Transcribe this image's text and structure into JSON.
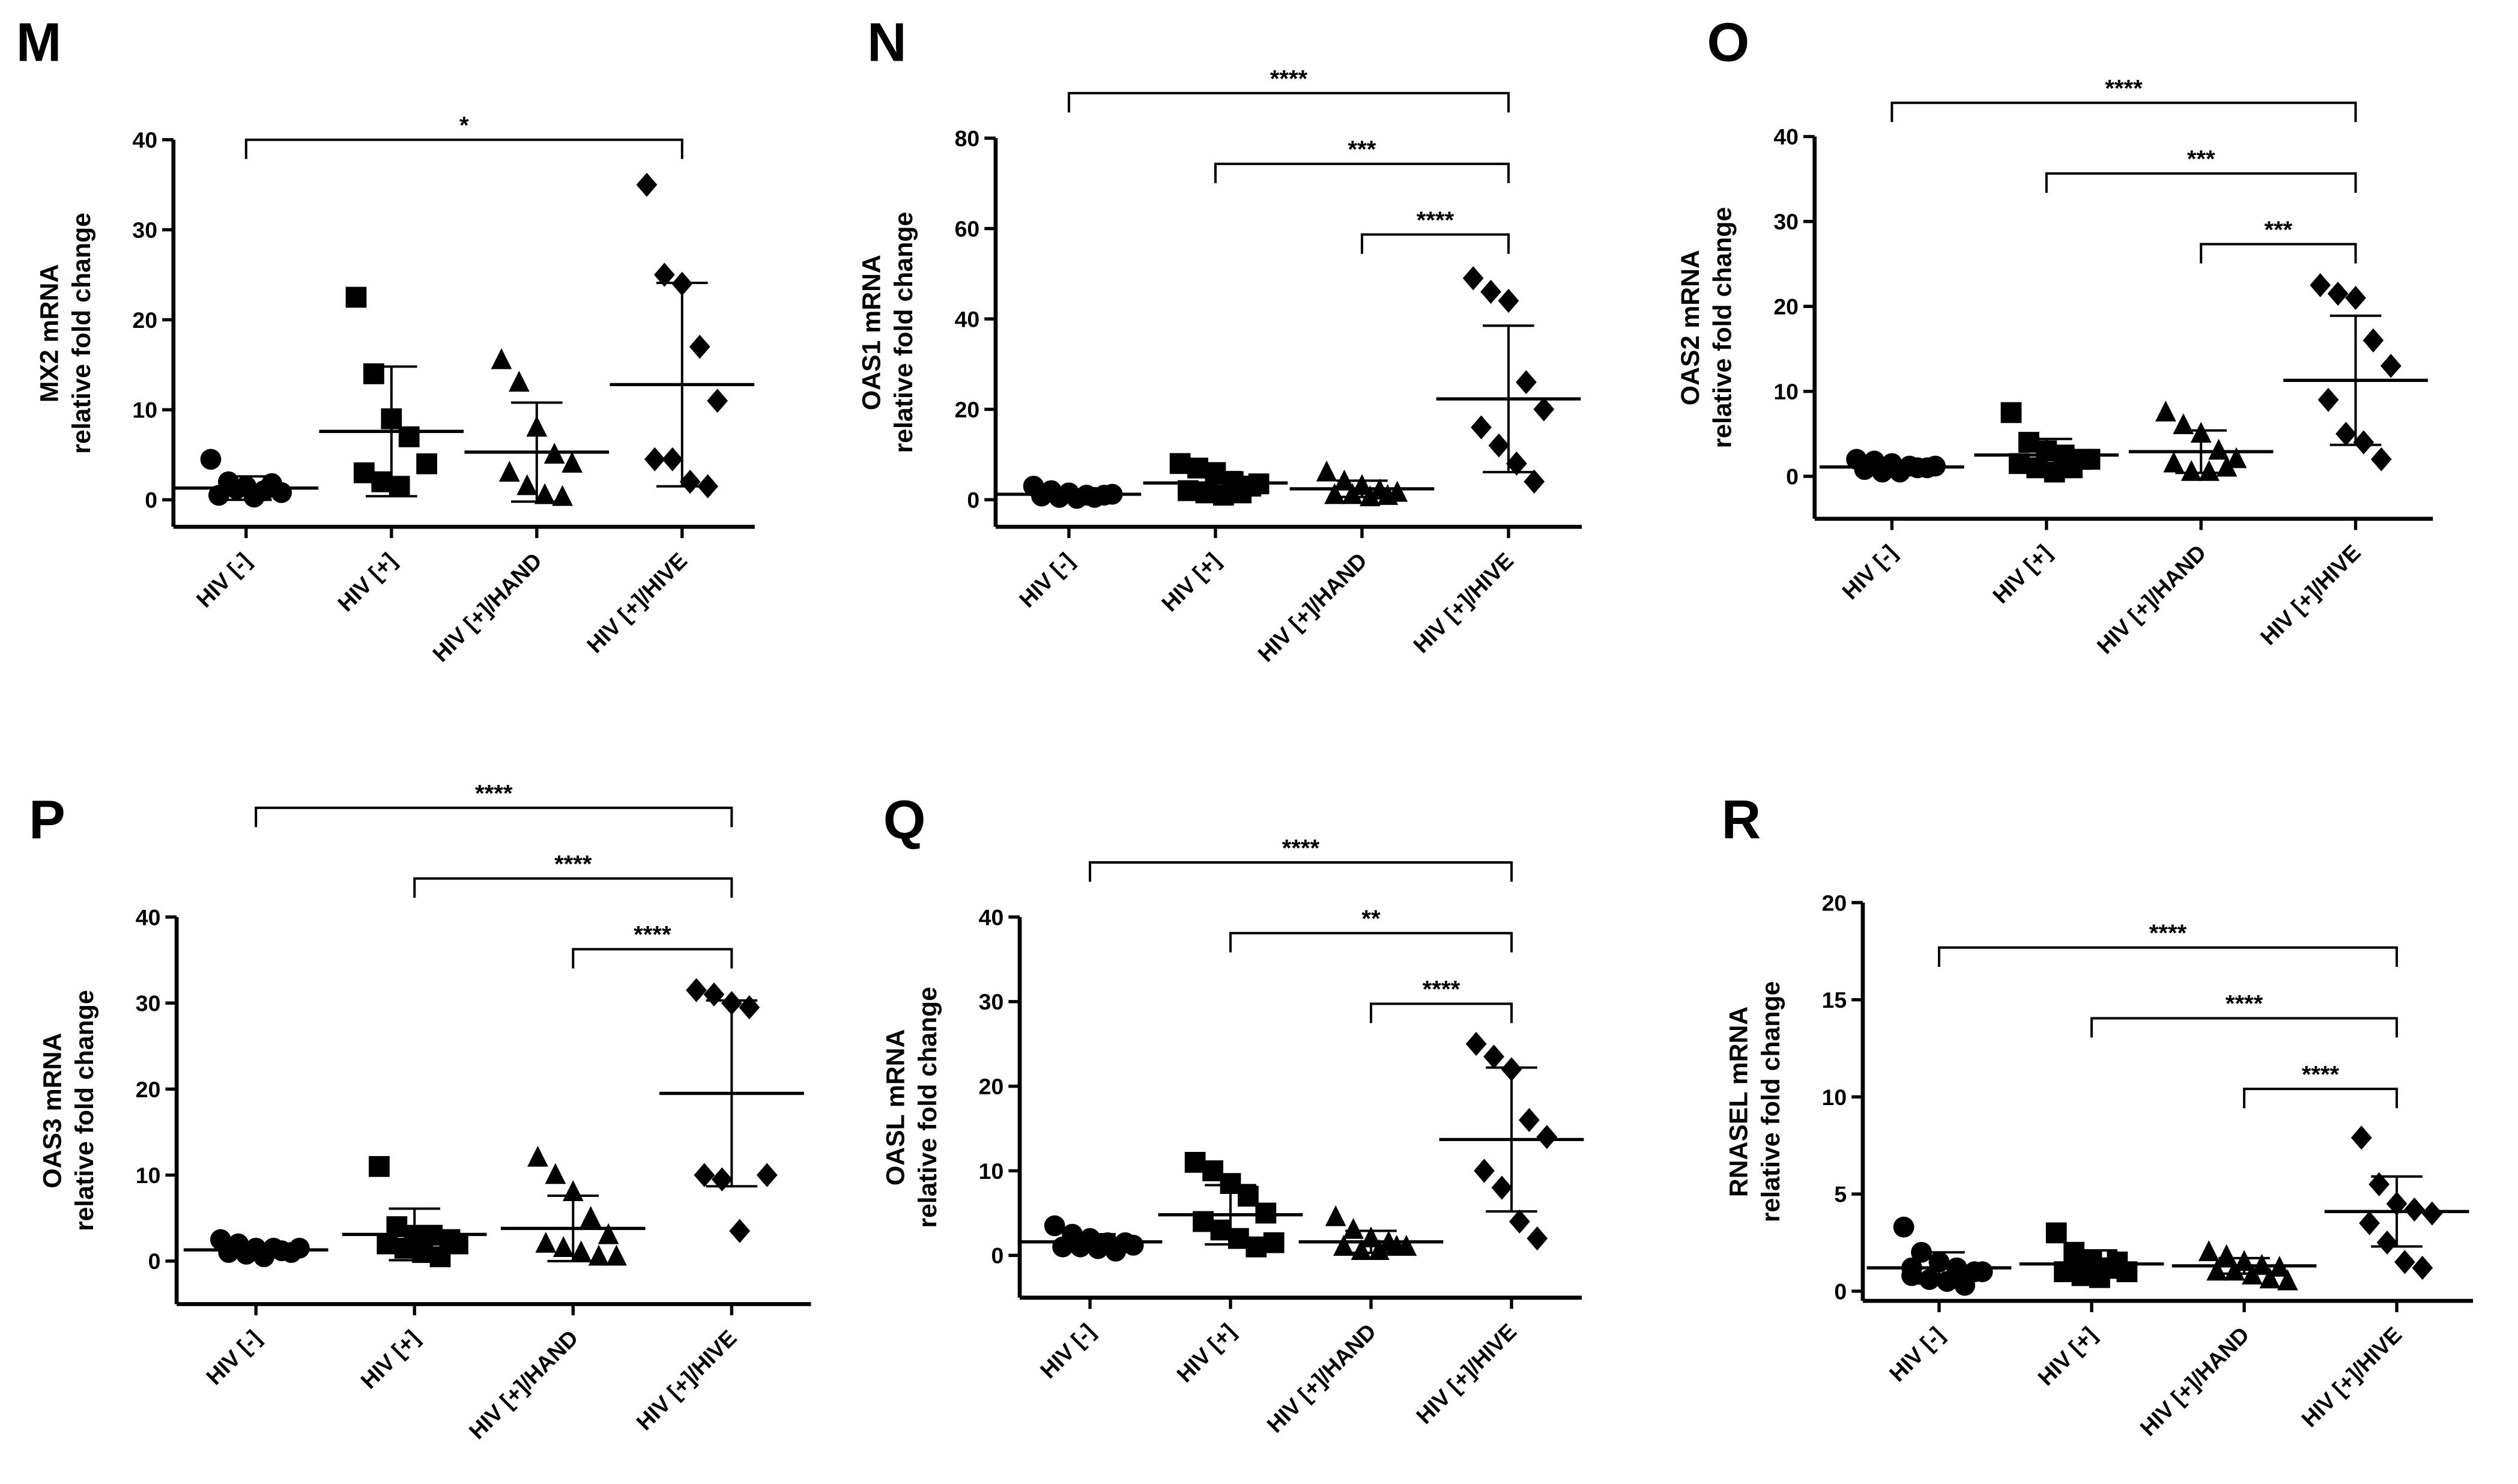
{
  "chart_data": [
    {
      "type": "dotplot",
      "panel": "M",
      "ylabel": [
        "MX2 mRNA",
        "relative fold change"
      ],
      "categories": [
        "HIV [-]",
        "HIV [+]",
        "HIV [+]/HAND",
        "HIV [+]/HIVE"
      ],
      "markers": [
        "circle",
        "square",
        "triangle",
        "diamond"
      ],
      "color": "#000000",
      "ylim": [
        -3,
        40
      ],
      "yticks": [
        0,
        10,
        20,
        30,
        40
      ],
      "groups": [
        {
          "values": [
            4.5,
            2,
            1.5,
            1,
            0.8,
            0.5,
            1.2,
            0.3,
            1.8
          ],
          "mean": 1.3,
          "sd": 1.3
        },
        {
          "values": [
            22.5,
            14,
            9,
            7,
            4,
            3,
            2,
            1.5
          ],
          "mean": 7.6,
          "sd": 7.2
        },
        {
          "values": [
            15.5,
            13,
            8,
            5,
            4,
            3,
            1.5,
            0.5,
            0.3
          ],
          "mean": 5.3,
          "sd": 5.5
        },
        {
          "values": [
            35,
            25,
            24,
            17,
            11,
            4.5,
            4.5,
            2,
            1.5
          ],
          "mean": 12.8,
          "sd": 11.3
        }
      ],
      "brackets": [
        {
          "from": 0,
          "to": 3,
          "label": "*"
        }
      ]
    },
    {
      "type": "dotplot",
      "panel": "N",
      "ylabel": [
        "OAS1 mRNA",
        "relative fold change"
      ],
      "categories": [
        "HIV [-]",
        "HIV [+]",
        "HIV [+]/HAND",
        "HIV [+]/HIVE"
      ],
      "markers": [
        "circle",
        "square",
        "triangle",
        "diamond"
      ],
      "color": "#000000",
      "ylim": [
        -6,
        80
      ],
      "yticks": [
        0,
        20,
        40,
        60,
        80
      ],
      "groups": [
        {
          "values": [
            3,
            2,
            1.5,
            1,
            1,
            0.8,
            0.5,
            0.3,
            0.5,
            1.2
          ],
          "mean": 1.2,
          "sd": 0.8
        },
        {
          "values": [
            8,
            7,
            6,
            4,
            3,
            2,
            1.5,
            1,
            1.5,
            3.5
          ],
          "mean": 3.7,
          "sd": 2.4
        },
        {
          "values": [
            6,
            4,
            3,
            2,
            1.5,
            1,
            1,
            0.5,
            0.8
          ],
          "mean": 2.4,
          "sd": 1.8
        },
        {
          "values": [
            49,
            46,
            44,
            26,
            20,
            16,
            12,
            8,
            4
          ],
          "mean": 22.3,
          "sd": 16.2
        }
      ],
      "brackets": [
        {
          "from": 0,
          "to": 3,
          "label": "****"
        },
        {
          "from": 1,
          "to": 3,
          "label": "***"
        },
        {
          "from": 2,
          "to": 3,
          "label": "****"
        }
      ]
    },
    {
      "type": "dotplot",
      "panel": "O",
      "ylabel": [
        "OAS2 mRNA",
        "relative fold change"
      ],
      "categories": [
        "HIV [-]",
        "HIV [+]",
        "HIV [+]/HAND",
        "HIV [+]/HIVE"
      ],
      "markers": [
        "circle",
        "square",
        "triangle",
        "diamond"
      ],
      "color": "#000000",
      "ylim": [
        -5,
        40
      ],
      "yticks": [
        0,
        10,
        20,
        30,
        40
      ],
      "groups": [
        {
          "values": [
            2,
            1.8,
            1.5,
            1.2,
            1,
            0.8,
            0.5,
            0.5,
            1,
            1.2
          ],
          "mean": 1.1,
          "sd": 0.5
        },
        {
          "values": [
            7.5,
            4,
            3,
            2.5,
            2,
            1.5,
            1,
            0.5,
            1,
            2
          ],
          "mean": 2.5,
          "sd": 1.9
        },
        {
          "values": [
            7.5,
            6,
            5,
            3,
            2,
            1.5,
            0.5,
            0.5,
            1
          ],
          "mean": 2.9,
          "sd": 2.5
        },
        {
          "values": [
            22.5,
            21.5,
            21,
            16,
            13,
            9,
            5,
            4,
            2
          ],
          "mean": 11.3,
          "sd": 7.6
        }
      ],
      "brackets": [
        {
          "from": 0,
          "to": 3,
          "label": "****"
        },
        {
          "from": 1,
          "to": 3,
          "label": "***"
        },
        {
          "from": 2,
          "to": 3,
          "label": "***"
        }
      ]
    },
    {
      "type": "dotplot",
      "panel": "P",
      "ylabel": [
        "OAS3 mRNA",
        "relative fold change"
      ],
      "categories": [
        "HIV [-]",
        "HIV [+]",
        "HIV [+]/HAND",
        "HIV [+]/HIVE"
      ],
      "markers": [
        "circle",
        "square",
        "triangle",
        "diamond"
      ],
      "color": "#000000",
      "ylim": [
        -5,
        40
      ],
      "yticks": [
        0,
        10,
        20,
        30,
        40
      ],
      "groups": [
        {
          "values": [
            2.5,
            2,
            1.5,
            1.5,
            1,
            1,
            0.8,
            0.5,
            1.2,
            1.5
          ],
          "mean": 1.3,
          "sd": 0.5
        },
        {
          "values": [
            11,
            4,
            3,
            3,
            2.5,
            2,
            1.5,
            1,
            0.5,
            2
          ],
          "mean": 3.1,
          "sd": 3
        },
        {
          "values": [
            12,
            10,
            8,
            5,
            3,
            2,
            1.5,
            1,
            0.5,
            0.5
          ],
          "mean": 3.8,
          "sd": 3.8
        },
        {
          "values": [
            31.5,
            31,
            30,
            29.5,
            10,
            10,
            9.5,
            3.5
          ],
          "mean": 19.5,
          "sd": 10.8
        }
      ],
      "brackets": [
        {
          "from": 0,
          "to": 3,
          "label": "****"
        },
        {
          "from": 1,
          "to": 3,
          "label": "****"
        },
        {
          "from": 2,
          "to": 3,
          "label": "****"
        }
      ]
    },
    {
      "type": "dotplot",
      "panel": "Q",
      "ylabel": [
        "OASL mRNA",
        "relative fold change"
      ],
      "categories": [
        "HIV [-]",
        "HIV [+]",
        "HIV [+]/HAND",
        "HIV [+]/HIVE"
      ],
      "markers": [
        "circle",
        "square",
        "triangle",
        "diamond"
      ],
      "color": "#000000",
      "ylim": [
        -5,
        40
      ],
      "yticks": [
        0,
        10,
        20,
        30,
        40
      ],
      "groups": [
        {
          "values": [
            3.5,
            2.5,
            2,
            1.5,
            1.5,
            1,
            1,
            0.8,
            0.5,
            1.2
          ],
          "mean": 1.6,
          "sd": 0.9
        },
        {
          "values": [
            11,
            10,
            8.5,
            7,
            5,
            4,
            3,
            2,
            1,
            1.5
          ],
          "mean": 4.8,
          "sd": 3.5
        },
        {
          "values": [
            4.5,
            3,
            2,
            1.5,
            1,
            1,
            0.5,
            0.5,
            1
          ],
          "mean": 1.6,
          "sd": 1.3
        },
        {
          "values": [
            25,
            23.5,
            22,
            16,
            14,
            10,
            8,
            4,
            2
          ],
          "mean": 13.7,
          "sd": 8.5
        }
      ],
      "brackets": [
        {
          "from": 0,
          "to": 3,
          "label": "****"
        },
        {
          "from": 1,
          "to": 3,
          "label": "**"
        },
        {
          "from": 2,
          "to": 3,
          "label": "****"
        }
      ]
    },
    {
      "type": "dotplot",
      "panel": "R",
      "ylabel": [
        "RNASEL mRNA",
        "relative fold change"
      ],
      "categories": [
        "HIV [-]",
        "HIV [+]",
        "HIV [+]/HAND",
        "HIV [+]/HIVE"
      ],
      "markers": [
        "circle",
        "square",
        "triangle",
        "diamond"
      ],
      "color": "#000000",
      "ylim": [
        -0.5,
        20
      ],
      "yticks": [
        0,
        5,
        10,
        15,
        20
      ],
      "groups": [
        {
          "values": [
            3.3,
            2,
            1.5,
            1.2,
            1,
            0.8,
            0.6,
            0.5,
            0.3,
            1,
            1.2
          ],
          "mean": 1.2,
          "sd": 0.8
        },
        {
          "values": [
            3,
            2,
            1.5,
            1.2,
            1,
            1,
            0.8,
            0.7,
            1.5
          ],
          "mean": 1.4,
          "sd": 0.7
        },
        {
          "values": [
            2,
            1.8,
            1.5,
            1.3,
            1.2,
            1,
            1,
            0.8,
            0.6,
            0.5
          ],
          "mean": 1.3,
          "sd": 0.4
        },
        {
          "values": [
            7.9,
            5.5,
            4.5,
            4.2,
            4,
            3.5,
            2.5,
            1.5,
            1.2
          ],
          "mean": 4.1,
          "sd": 1.8
        }
      ],
      "brackets": [
        {
          "from": 0,
          "to": 3,
          "label": "****"
        },
        {
          "from": 1,
          "to": 3,
          "label": "****"
        },
        {
          "from": 2,
          "to": 3,
          "label": "****"
        }
      ]
    }
  ]
}
